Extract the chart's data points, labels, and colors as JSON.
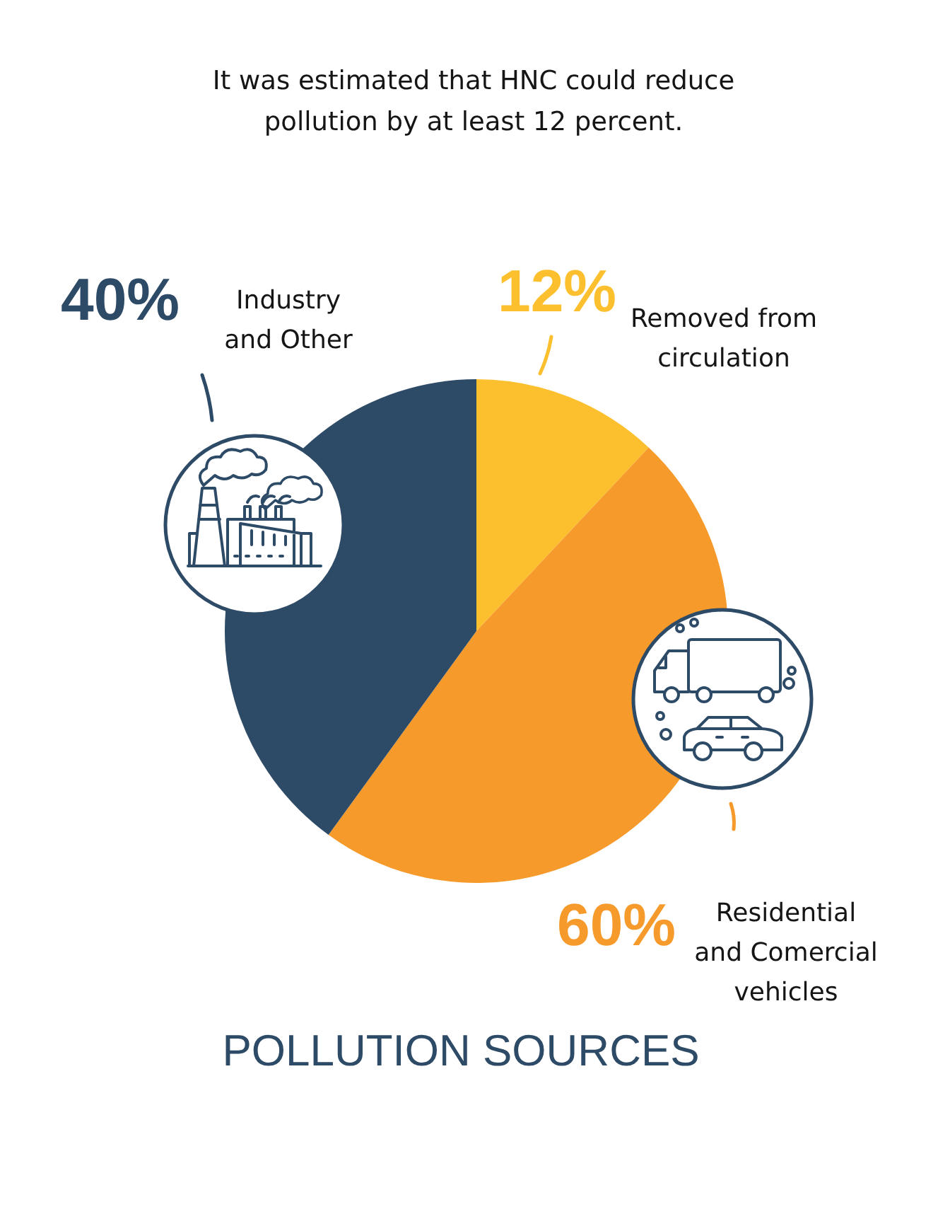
{
  "chart_data": {
    "type": "pie",
    "title": "POLLUTION SOURCES",
    "subtitle": "It was estimated that HNC could reduce pollution by at least 12 percent.",
    "categories": [
      "Removed from circulation",
      "Residential and Comercial vehicles",
      "Industry and Other"
    ],
    "values": [
      12,
      48,
      40
    ],
    "colors": [
      "#fcc02e",
      "#f69a2c",
      "#2d4a66"
    ],
    "value_labels": [
      "12%",
      null,
      "40%"
    ],
    "annotations": [
      {
        "text": "60%",
        "x": "Residential and Comercial vehicles"
      }
    ]
  }
}
